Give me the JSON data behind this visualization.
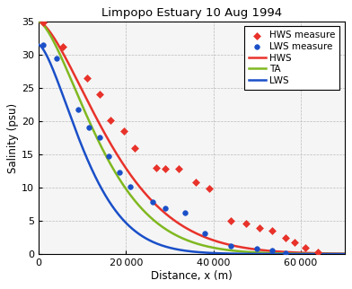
{
  "title": "Limpopo Estuary 10 Aug 1994",
  "xlabel": "Distance, x (m)",
  "ylabel": "Salinity (psu)",
  "xlim": [
    0,
    70000
  ],
  "ylim": [
    0,
    35
  ],
  "yticks": [
    0,
    5,
    10,
    15,
    20,
    25,
    30,
    35
  ],
  "xticks": [
    0,
    20000,
    40000,
    60000
  ],
  "hws_measured_x": [
    1000,
    5500,
    11000,
    14000,
    16500,
    19500,
    22000,
    27000,
    29000,
    32000,
    36000,
    39000,
    44000,
    47500,
    50500,
    53500,
    56500,
    58500,
    61000,
    64000
  ],
  "hws_measured_y": [
    34.8,
    31.2,
    26.5,
    24.0,
    20.1,
    18.5,
    16.0,
    13.0,
    12.8,
    12.9,
    10.8,
    9.9,
    5.0,
    4.6,
    3.9,
    3.5,
    2.5,
    1.8,
    1.0,
    0.3
  ],
  "lws_measured_x": [
    1000,
    4000,
    9000,
    11500,
    14000,
    16000,
    18500,
    21000,
    26000,
    29000,
    33500,
    38000,
    44000,
    50000,
    53500,
    56500
  ],
  "lws_measured_y": [
    31.5,
    29.5,
    21.7,
    19.0,
    17.5,
    14.7,
    12.3,
    10.1,
    7.8,
    6.9,
    6.2,
    3.1,
    1.2,
    0.8,
    0.5,
    0.1
  ],
  "hws_color": "#e8322a",
  "ta_color": "#80b820",
  "lws_color": "#1a4fc8",
  "hws_s0": 35.0,
  "hws_L": 20000,
  "hws_n": 1.5,
  "ta_s0": 35.0,
  "ta_L": 17000,
  "ta_n": 1.5,
  "lws_s0": 31.5,
  "lws_L": 13000,
  "lws_n": 1.5,
  "legend_entries": [
    "HWS measure",
    "LWS measure",
    "HWS",
    "TA",
    "LWS"
  ],
  "bg_color": "#f5f5f5"
}
